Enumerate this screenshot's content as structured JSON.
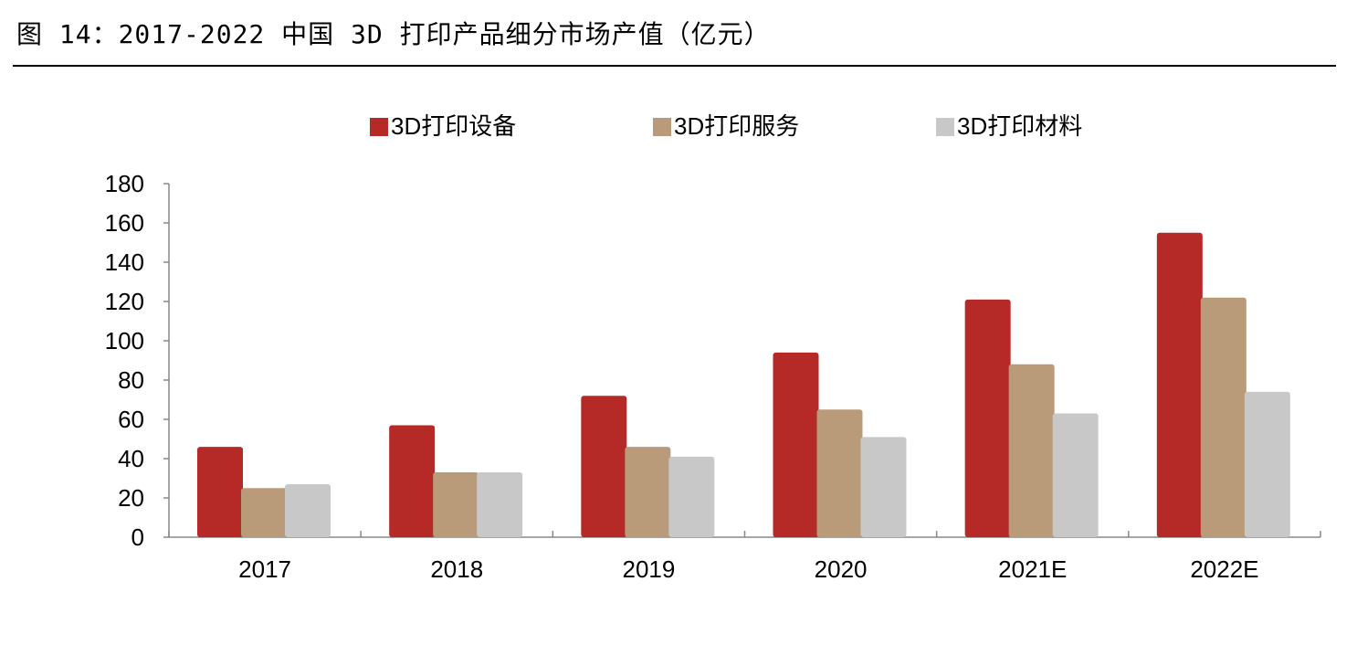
{
  "header": {
    "figure_title": "图 14：2017-2022 中国 3D 打印产品细分市场产值（亿元）"
  },
  "colors": {
    "series": [
      "#b52a27",
      "#b99b79",
      "#c8c8c8"
    ],
    "axis": "#888888"
  },
  "chart_data": {
    "type": "bar",
    "title": "2017-2022 中国 3D 打印产品细分市场产值（亿元）",
    "xlabel": "",
    "ylabel": "",
    "categories": [
      "2017",
      "2018",
      "2019",
      "2020",
      "2021E",
      "2022E"
    ],
    "series": [
      {
        "name": "3D打印设备",
        "values": [
          46,
          57,
          72,
          94,
          121,
          155
        ]
      },
      {
        "name": "3D打印服务",
        "values": [
          25,
          33,
          46,
          65,
          88,
          122
        ]
      },
      {
        "name": "3D打印材料",
        "values": [
          27,
          33,
          41,
          51,
          63,
          74
        ]
      }
    ],
    "ylim": [
      0,
      180
    ],
    "yticks": [
      0,
      20,
      40,
      60,
      80,
      100,
      120,
      140,
      160,
      180
    ],
    "grid": false,
    "legend_position": "top"
  }
}
